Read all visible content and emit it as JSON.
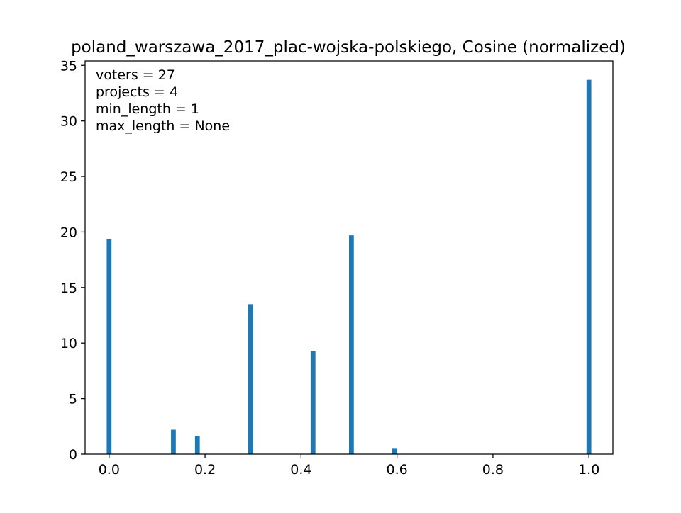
{
  "chart_data": {
    "type": "bar",
    "title": "poland_warszawa_2017_plac-wojska-polskiego, Cosine (normalized)",
    "xlabel": "",
    "ylabel": "",
    "xlim": [
      -0.05,
      1.05
    ],
    "ylim": [
      0,
      35.4
    ],
    "xticks": [
      0.0,
      0.2,
      0.4,
      0.6,
      0.8,
      1.0
    ],
    "xtick_labels": [
      "0.0",
      "0.2",
      "0.4",
      "0.6",
      "0.8",
      "1.0"
    ],
    "yticks": [
      0,
      5,
      10,
      15,
      20,
      25,
      30,
      35
    ],
    "ytick_labels": [
      "0",
      "5",
      "10",
      "15",
      "20",
      "25",
      "30",
      "35"
    ],
    "bar_width": 0.01,
    "x": [
      0.0,
      0.134,
      0.184,
      0.295,
      0.425,
      0.505,
      0.595,
      1.0
    ],
    "values": [
      19.35,
      2.2,
      1.65,
      13.5,
      9.3,
      19.7,
      0.55,
      33.7
    ],
    "bar_color": "#1f77b4",
    "grid": false,
    "annotations": [
      "voters = 27",
      "projects = 4",
      "min_length = 1",
      "max_length = None"
    ]
  }
}
